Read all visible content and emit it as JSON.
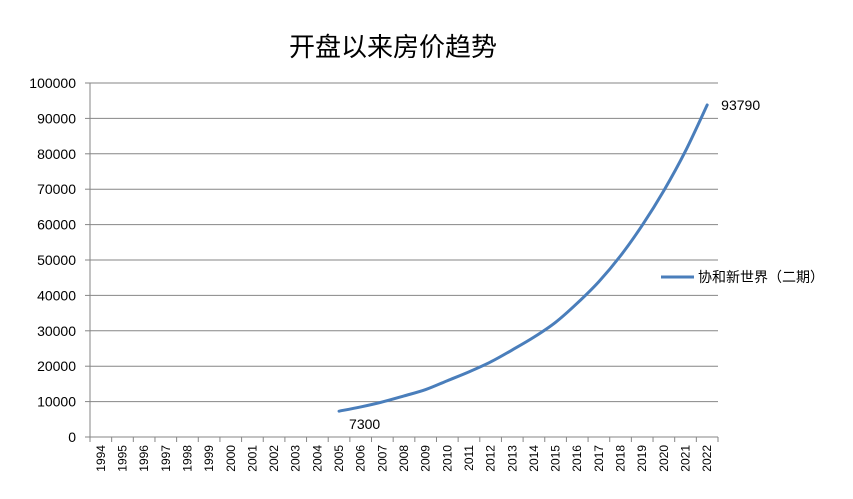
{
  "chart_data": {
    "type": "line",
    "title": "开盘以来房价趋势",
    "xlabel": "",
    "ylabel": "",
    "ylim": [
      0,
      100000
    ],
    "yticks": [
      0,
      10000,
      20000,
      30000,
      40000,
      50000,
      60000,
      70000,
      80000,
      90000,
      100000
    ],
    "categories": [
      "1994",
      "1995",
      "1996",
      "1997",
      "1998",
      "1999",
      "2000",
      "2001",
      "2002",
      "2003",
      "2004",
      "2005",
      "2006",
      "2007",
      "2008",
      "2009",
      "2010",
      "2011",
      "2012",
      "2013",
      "2014",
      "2015",
      "2016",
      "2017",
      "2018",
      "2019",
      "2020",
      "2021",
      "2022"
    ],
    "grid": true,
    "legend_position": "right",
    "series": [
      {
        "name": "协和新世界（二期）",
        "color": "#4a7ebb",
        "values": [
          null,
          null,
          null,
          null,
          null,
          null,
          null,
          null,
          null,
          null,
          null,
          7300,
          8500,
          9900,
          11600,
          13400,
          15900,
          18400,
          21200,
          24600,
          28200,
          32400,
          37800,
          43900,
          51200,
          59800,
          69600,
          80800,
          93790
        ]
      }
    ],
    "data_labels": [
      {
        "category": "2005",
        "text": "7300"
      },
      {
        "category": "2022",
        "text": "93790"
      }
    ]
  }
}
